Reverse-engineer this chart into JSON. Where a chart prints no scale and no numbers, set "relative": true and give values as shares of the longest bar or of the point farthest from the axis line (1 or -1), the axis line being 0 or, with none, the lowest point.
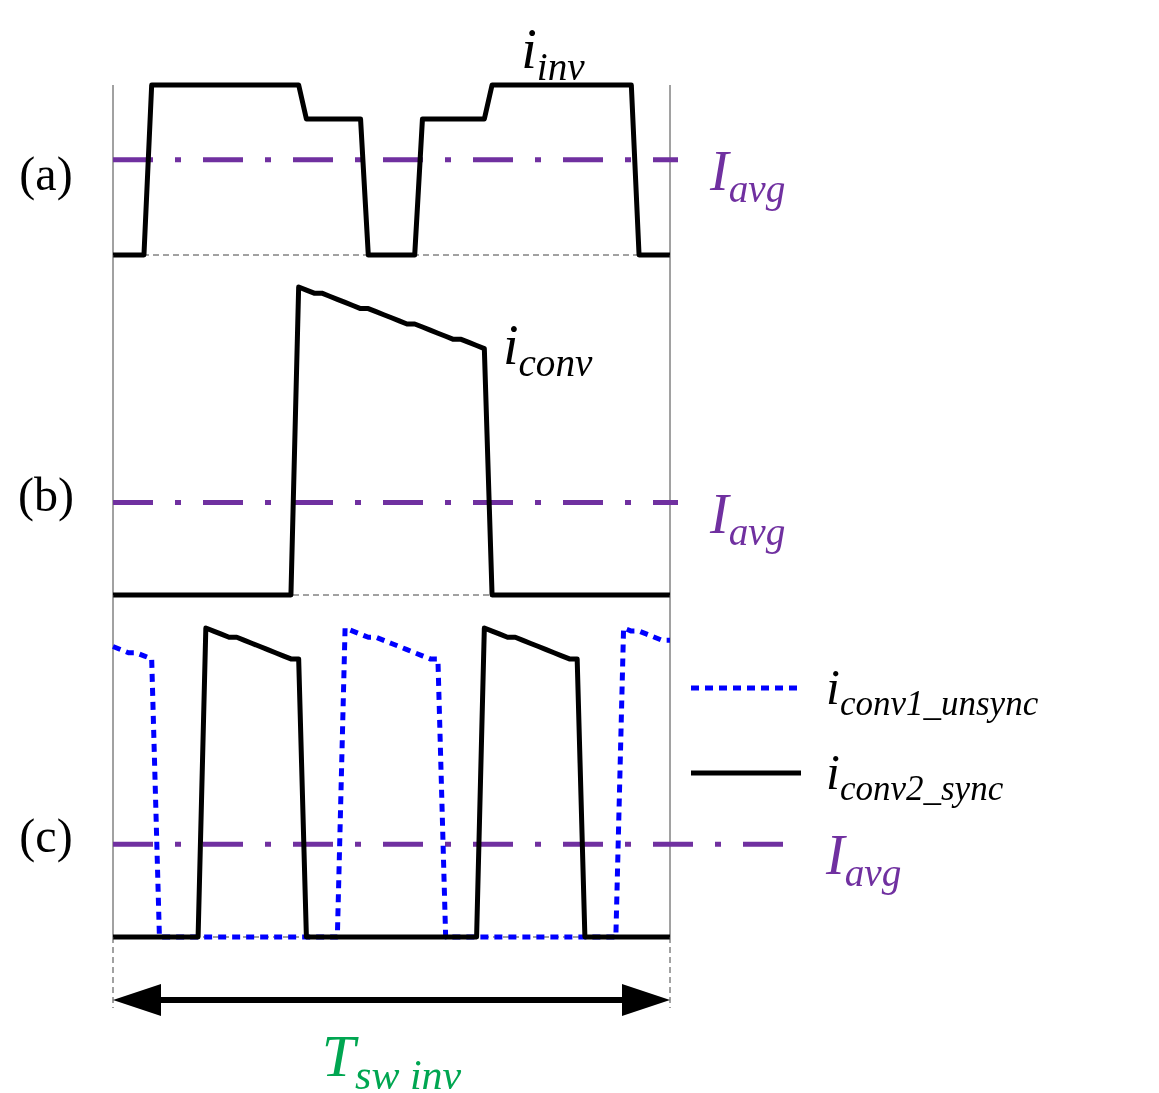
{
  "chart_data": [
    {
      "type": "line",
      "title": "(a)",
      "relative": true,
      "legend": false,
      "categories": [
        null,
        null,
        null,
        null,
        null,
        null,
        null,
        null,
        null,
        null,
        null,
        null,
        null,
        null,
        null,
        null,
        null,
        null,
        null,
        null,
        null,
        null,
        null,
        null,
        null,
        null,
        null,
        null,
        null,
        null,
        null,
        null,
        null,
        null,
        null,
        null,
        null,
        null,
        null,
        null,
        null,
        null,
        null,
        null,
        null,
        null,
        null,
        null,
        null,
        null,
        null,
        null,
        null,
        null,
        null,
        null,
        null,
        null,
        null,
        null,
        null,
        null,
        null,
        null,
        null,
        null,
        null,
        null,
        null,
        null,
        null,
        null,
        null
      ],
      "series": [
        {
          "name": "i$_{inv}$",
          "color": "#000000",
          "values": [
            0,
            0,
            0,
            0,
            0,
            1,
            1,
            1,
            1,
            1,
            1,
            1,
            1,
            1,
            1,
            1,
            1,
            1,
            1,
            1,
            1,
            1,
            1,
            1,
            1,
            0.8,
            0.8,
            0.8,
            0.8,
            0.8,
            0.8,
            0.8,
            0.8,
            0,
            0,
            0,
            0,
            0,
            0,
            0,
            0.8,
            0.8,
            0.8,
            0.8,
            0.8,
            0.8,
            0.8,
            0.8,
            0.8,
            1,
            1,
            1,
            1,
            1,
            1,
            1,
            1,
            1,
            1,
            1,
            1,
            1,
            1,
            1,
            1,
            1,
            1,
            1,
            0,
            0,
            0,
            0,
            0
          ]
        }
      ],
      "ref_lines": [
        {
          "axis": "y",
          "value": 0.56,
          "label": "I$_{avg}$",
          "color": "#7030a0",
          "line_style": "dashed"
        }
      ]
    },
    {
      "type": "line",
      "title": "(b)",
      "relative": true,
      "legend": false,
      "categories": [
        null,
        null,
        null,
        null,
        null,
        null,
        null,
        null,
        null,
        null,
        null,
        null,
        null,
        null,
        null,
        null,
        null,
        null,
        null,
        null,
        null,
        null,
        null,
        null,
        null,
        null,
        null,
        null,
        null,
        null,
        null,
        null,
        null,
        null,
        null,
        null,
        null,
        null,
        null,
        null,
        null,
        null,
        null,
        null,
        null,
        null,
        null,
        null,
        null,
        null,
        null,
        null,
        null,
        null,
        null,
        null,
        null,
        null,
        null,
        null,
        null,
        null,
        null,
        null,
        null,
        null,
        null,
        null,
        null,
        null,
        null,
        null,
        null
      ],
      "series": [
        {
          "name": "i$_{conv}$",
          "color": "#000000",
          "values": [
            0,
            0,
            0,
            0,
            0,
            0,
            0,
            0,
            0,
            0,
            0,
            0,
            0,
            0,
            0,
            0,
            0,
            0,
            0,
            0,
            0,
            0,
            0,
            0,
            1,
            0.99,
            0.98,
            0.98,
            0.97,
            0.96,
            0.95,
            0.94,
            0.93,
            0.93,
            0.92,
            0.91,
            0.9,
            0.89,
            0.88,
            0.88,
            0.87,
            0.86,
            0.85,
            0.84,
            0.83,
            0.83,
            0.82,
            0.81,
            0.8,
            0,
            0,
            0,
            0,
            0,
            0,
            0,
            0,
            0,
            0,
            0,
            0,
            0,
            0,
            0,
            0,
            0,
            0,
            0,
            0,
            0,
            0,
            0,
            0
          ]
        }
      ],
      "ref_lines": [
        {
          "axis": "y",
          "value": 0.3,
          "label": "I$_{avg}$",
          "color": "#7030a0",
          "line_style": "dashed"
        }
      ]
    },
    {
      "type": "line",
      "title": "(c)",
      "relative": true,
      "legend": "right",
      "categories": [
        null,
        null,
        null,
        null,
        null,
        null,
        null,
        null,
        null,
        null,
        null,
        null,
        null,
        null,
        null,
        null,
        null,
        null,
        null,
        null,
        null,
        null,
        null,
        null,
        null,
        null,
        null,
        null,
        null,
        null,
        null,
        null,
        null,
        null,
        null,
        null,
        null,
        null,
        null,
        null,
        null,
        null,
        null,
        null,
        null,
        null,
        null,
        null,
        null,
        null,
        null,
        null,
        null,
        null,
        null,
        null,
        null,
        null,
        null,
        null,
        null,
        null,
        null,
        null,
        null,
        null,
        null,
        null,
        null,
        null,
        null,
        null,
        null
      ],
      "series": [
        {
          "name": "i$_{conv1_unsync}$",
          "color": "#0000ff",
          "line_style": "dotted",
          "values": [
            0.94,
            0.93,
            0.92,
            0.92,
            0.91,
            0.9,
            0,
            0,
            0,
            0,
            0,
            0,
            0,
            0,
            0,
            0,
            0,
            0,
            0,
            0,
            0,
            0,
            0,
            0,
            0,
            0,
            0,
            0,
            0,
            0,
            1,
            0.99,
            0.98,
            0.97,
            0.97,
            0.96,
            0.95,
            0.94,
            0.93,
            0.92,
            0.91,
            0.9,
            0.9,
            0,
            0,
            0,
            0,
            0,
            0,
            0,
            0,
            0,
            0,
            0,
            0,
            0,
            0,
            0,
            0,
            0,
            0,
            0,
            0,
            0,
            0,
            0,
            1,
            0.99,
            0.99,
            0.98,
            0.97,
            0.96,
            0.96
          ]
        },
        {
          "name": "i$_{conv2_sync}$",
          "color": "#000000",
          "values": [
            0,
            0,
            0,
            0,
            0,
            0,
            0,
            0,
            0,
            0,
            0,
            0,
            1,
            0.99,
            0.98,
            0.97,
            0.97,
            0.96,
            0.95,
            0.94,
            0.93,
            0.92,
            0.91,
            0.9,
            0.9,
            0,
            0,
            0,
            0,
            0,
            0,
            0,
            0,
            0,
            0,
            0,
            0,
            0,
            0,
            0,
            0,
            0,
            0,
            0,
            0,
            0,
            0,
            0,
            1,
            0.99,
            0.98,
            0.97,
            0.97,
            0.96,
            0.95,
            0.94,
            0.93,
            0.92,
            0.91,
            0.9,
            0.9,
            0,
            0,
            0,
            0,
            0,
            0,
            0,
            0,
            0,
            0,
            0,
            0
          ]
        }
      ],
      "ref_lines": [
        {
          "axis": "y",
          "value": 0.3,
          "label": "I$_{avg}$",
          "color": "#7030a0",
          "line_style": "dashed"
        }
      ],
      "annotations": [
        "T$_{sw inv}$"
      ]
    }
  ]
}
